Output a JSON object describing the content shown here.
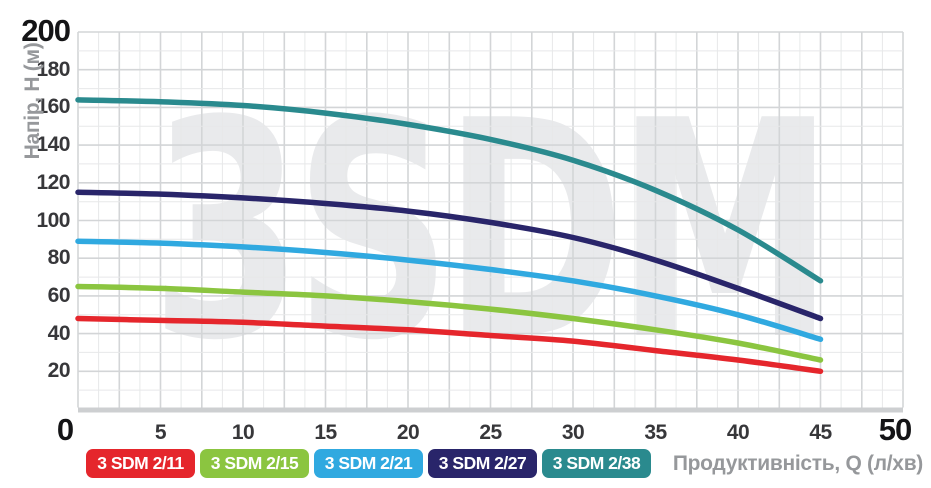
{
  "watermark": "3SDM",
  "chart_data": {
    "type": "line",
    "title": "",
    "xlabel": "Продуктивність, Q (л/хв)",
    "ylabel": "Напір, H (м)",
    "xlim": [
      0,
      50
    ],
    "ylim": [
      0,
      200
    ],
    "x_ticks": [
      5,
      10,
      15,
      20,
      25,
      30,
      35,
      40,
      45
    ],
    "y_ticks": [
      20,
      40,
      60,
      80,
      100,
      120,
      140,
      160,
      180
    ],
    "y_max_label": "200",
    "x_origin_label": "0",
    "x_max_label": "50",
    "grid": "on (minor every 1.25 L/min and 10 m, major every 2.5 L/min and 20 m)",
    "legend_position": "bottom",
    "x": [
      0,
      5,
      10,
      15,
      20,
      25,
      30,
      35,
      40,
      45
    ],
    "series": [
      {
        "name": "3 SDM 2/11",
        "color": "#e5262c",
        "values": [
          48,
          47,
          46,
          44,
          42,
          39,
          36,
          31,
          26,
          20
        ]
      },
      {
        "name": "3 SDM 2/15",
        "color": "#8bc540",
        "values": [
          65,
          64,
          62,
          60,
          57,
          53,
          48,
          42,
          35,
          26
        ]
      },
      {
        "name": "3 SDM 2/21",
        "color": "#30a9e0",
        "values": [
          89,
          88,
          86,
          83,
          79,
          74,
          68,
          60,
          50,
          37
        ]
      },
      {
        "name": "3 SDM 2/27",
        "color": "#29256a",
        "values": [
          115,
          114,
          112,
          109,
          105,
          99,
          91,
          79,
          64,
          48
        ]
      },
      {
        "name": "3 SDM 2/38",
        "color": "#2a8a8e",
        "values": [
          164,
          163,
          161,
          157,
          151,
          143,
          132,
          116,
          95,
          68
        ]
      }
    ]
  },
  "style_colors": {
    "grid_minor": "#e7e8e9",
    "grid_major": "#d3d5d7",
    "axis_band": "#cdcfd1",
    "tick_text": "#37373a",
    "big_tick_text": "#141416",
    "axis_title_text": "#96989b",
    "watermark": "#e9eaec"
  }
}
